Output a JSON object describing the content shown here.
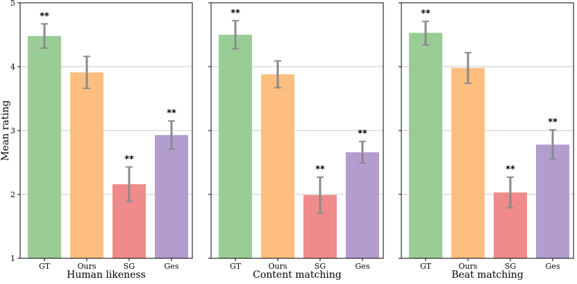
{
  "chart_data": {
    "type": "bar",
    "ylabel": "Mean rating",
    "ylim": [
      1,
      5
    ],
    "yticks": [
      1,
      2,
      3,
      4,
      5
    ],
    "grid": "horizontal",
    "categories": [
      "GT",
      "Ours",
      "SG",
      "Ges"
    ],
    "colors": [
      "#9acd96",
      "#fdbe7f",
      "#f08b8b",
      "#b39dcf"
    ],
    "errorbar_color": "#8a8a8a",
    "panels": [
      {
        "title": "Human likeness",
        "values": [
          4.48,
          3.91,
          2.16,
          2.93
        ],
        "error_low": [
          4.29,
          3.66,
          1.89,
          2.71
        ],
        "error_high": [
          4.67,
          4.16,
          2.43,
          3.15
        ],
        "significance": [
          "**",
          "",
          "**",
          "**"
        ]
      },
      {
        "title": "Content matching",
        "values": [
          4.5,
          3.88,
          1.99,
          2.66
        ],
        "error_low": [
          4.28,
          3.67,
          1.71,
          2.49
        ],
        "error_high": [
          4.72,
          4.09,
          2.27,
          2.83
        ],
        "significance": [
          "**",
          "",
          "**",
          "**"
        ]
      },
      {
        "title": "Beat matching",
        "values": [
          4.53,
          3.98,
          2.03,
          2.78
        ],
        "error_low": [
          4.34,
          3.74,
          1.79,
          2.55
        ],
        "error_high": [
          4.71,
          4.22,
          2.27,
          3.01
        ],
        "significance": [
          "**",
          "",
          "**",
          "**"
        ]
      }
    ]
  }
}
